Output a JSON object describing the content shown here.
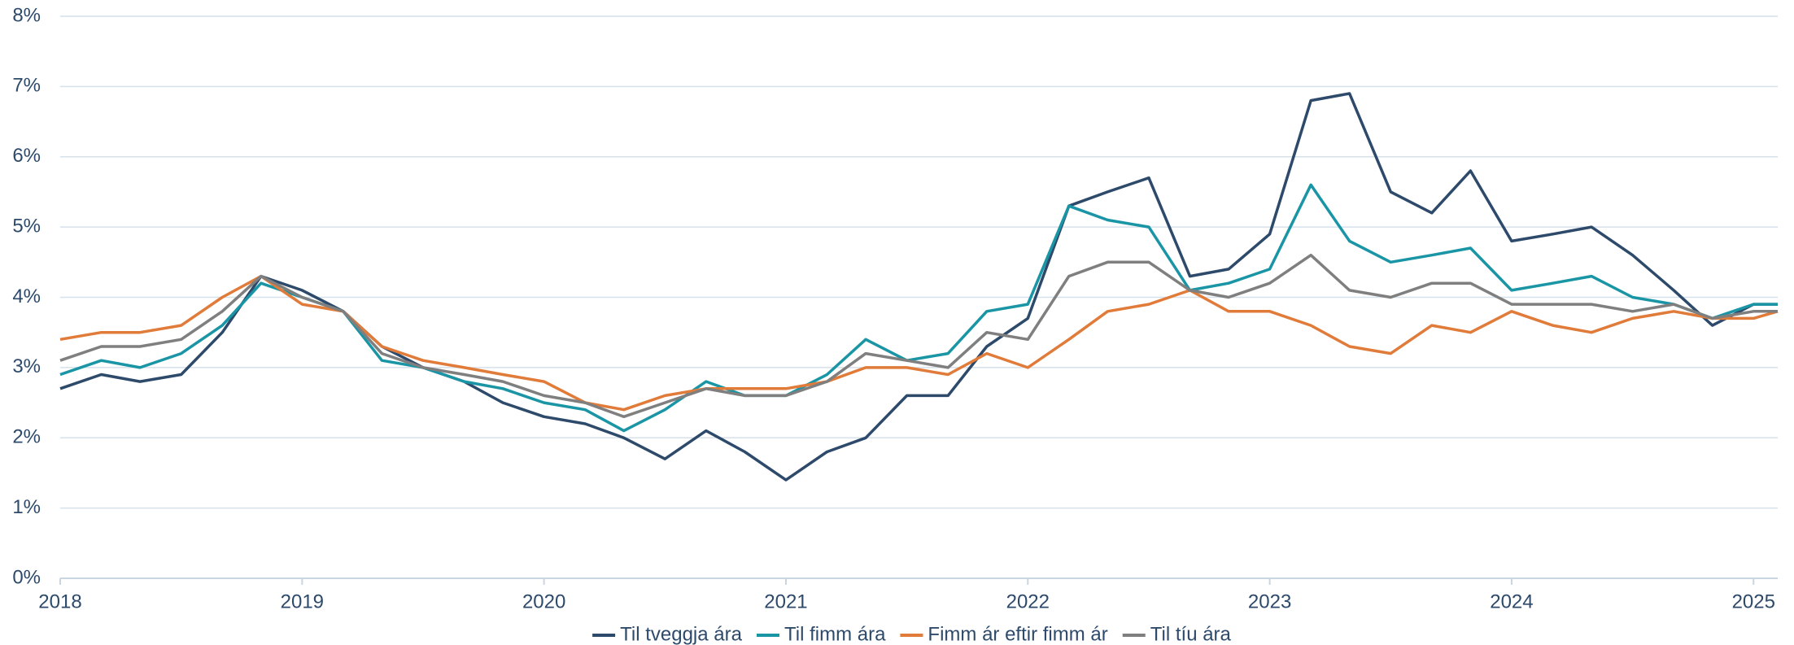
{
  "chart_data": {
    "type": "line",
    "x": [
      2018,
      2018.17,
      2018.33,
      2018.5,
      2018.67,
      2018.83,
      2019,
      2019.17,
      2019.33,
      2019.5,
      2019.67,
      2019.83,
      2020,
      2020.17,
      2020.33,
      2020.5,
      2020.67,
      2020.83,
      2021,
      2021.17,
      2021.33,
      2021.5,
      2021.67,
      2021.83,
      2022,
      2022.17,
      2022.33,
      2022.5,
      2022.67,
      2022.83,
      2023,
      2023.17,
      2023.33,
      2023.5,
      2023.67,
      2023.83,
      2024,
      2024.17,
      2024.33,
      2024.5,
      2024.67,
      2024.83,
      2025,
      2025.1
    ],
    "series": [
      {
        "name": "Til tveggja ára",
        "color": "#2e4a6b",
        "values": [
          2.7,
          2.9,
          2.8,
          2.9,
          3.5,
          4.3,
          4.1,
          3.8,
          3.3,
          3.0,
          2.8,
          2.5,
          2.3,
          2.2,
          2.0,
          1.7,
          2.1,
          1.8,
          1.4,
          1.8,
          2.0,
          2.6,
          2.6,
          3.3,
          3.7,
          5.3,
          5.5,
          5.7,
          4.3,
          4.4,
          4.9,
          6.8,
          6.9,
          5.5,
          5.2,
          5.8,
          4.8,
          4.9,
          5.0,
          4.6,
          4.1,
          3.6,
          3.9,
          3.9
        ]
      },
      {
        "name": "Til fimm ára",
        "color": "#1a95a5",
        "values": [
          2.9,
          3.1,
          3.0,
          3.2,
          3.6,
          4.2,
          4.0,
          3.8,
          3.1,
          3.0,
          2.8,
          2.7,
          2.5,
          2.4,
          2.1,
          2.4,
          2.8,
          2.6,
          2.6,
          2.9,
          3.4,
          3.1,
          3.2,
          3.8,
          3.9,
          5.3,
          5.1,
          5.0,
          4.1,
          4.2,
          4.4,
          5.6,
          4.8,
          4.5,
          4.6,
          4.7,
          4.1,
          4.2,
          4.3,
          4.0,
          3.9,
          3.7,
          3.9,
          3.9
        ]
      },
      {
        "name": "Fimm ár eftir fimm ár",
        "color": "#e07b39",
        "values": [
          3.4,
          3.5,
          3.5,
          3.6,
          4.0,
          4.3,
          3.9,
          3.8,
          3.3,
          3.1,
          3.0,
          2.9,
          2.8,
          2.5,
          2.4,
          2.6,
          2.7,
          2.7,
          2.7,
          2.8,
          3.0,
          3.0,
          2.9,
          3.2,
          3.0,
          3.4,
          3.8,
          3.9,
          4.1,
          3.8,
          3.8,
          3.6,
          3.3,
          3.2,
          3.6,
          3.5,
          3.8,
          3.6,
          3.5,
          3.7,
          3.8,
          3.7,
          3.7,
          3.8
        ]
      },
      {
        "name": "Til tíu ára",
        "color": "#7f7f7f",
        "values": [
          3.1,
          3.3,
          3.3,
          3.4,
          3.8,
          4.3,
          4.0,
          3.8,
          3.2,
          3.0,
          2.9,
          2.8,
          2.6,
          2.5,
          2.3,
          2.5,
          2.7,
          2.6,
          2.6,
          2.8,
          3.2,
          3.1,
          3.0,
          3.5,
          3.4,
          4.3,
          4.5,
          4.5,
          4.1,
          4.0,
          4.2,
          4.6,
          4.1,
          4.0,
          4.2,
          4.2,
          3.9,
          3.9,
          3.9,
          3.8,
          3.9,
          3.7,
          3.8,
          3.8
        ]
      }
    ],
    "xlim": [
      2018,
      2025.1
    ],
    "xticks": [
      2018,
      2019,
      2020,
      2021,
      2022,
      2023,
      2024,
      2025
    ],
    "ylim": [
      0,
      8
    ],
    "yticks": [
      {
        "value": 0,
        "label": "0%"
      },
      {
        "value": 1,
        "label": "1%"
      },
      {
        "value": 2,
        "label": "2%"
      },
      {
        "value": 3,
        "label": "3%"
      },
      {
        "value": 4,
        "label": "4%"
      },
      {
        "value": 5,
        "label": "5%"
      },
      {
        "value": 6,
        "label": "6%"
      },
      {
        "value": 7,
        "label": "7%"
      },
      {
        "value": 8,
        "label": "8%"
      }
    ],
    "grid": true,
    "legend": "bottom"
  }
}
